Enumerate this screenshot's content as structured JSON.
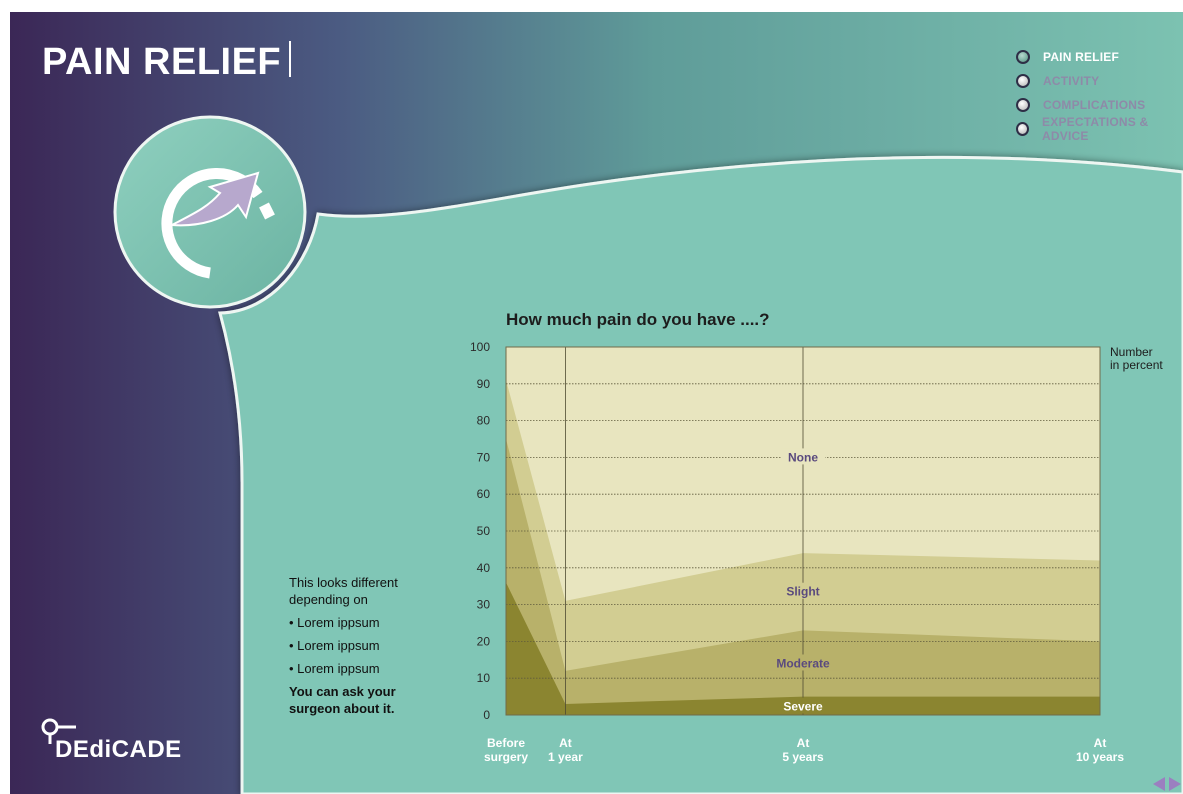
{
  "header": {
    "title": "PAIN RELIEF"
  },
  "nav": {
    "items": [
      {
        "label": "PAIN RELIEF",
        "active": true
      },
      {
        "label": "ACTIVITY",
        "active": false
      },
      {
        "label": "COMPLICATIONS",
        "active": false
      },
      {
        "label": "EXPECTATIONS & ADVICE",
        "active": false
      }
    ]
  },
  "side_text": {
    "intro_line1": "This looks different",
    "intro_line2": "depending on",
    "bullets": [
      "• Lorem ippsum",
      "• Lorem ippsum",
      "• Lorem ippsum"
    ],
    "ask_line1": "You can ask your",
    "ask_line2": "surgeon about it."
  },
  "logo": {
    "text": "DEdiCADE"
  },
  "colors": {
    "bg_dark": "#3d2a58",
    "bg_mid": "#4d5f84",
    "teal": "#80c6b6",
    "teal_light": "#a2d6ca",
    "plot_none": "#e8e5bf",
    "plot_slight": "#d2cd92",
    "plot_moderate": "#b8b16a",
    "plot_severe": "#8b8530",
    "label_purple": "#5a4a7e"
  },
  "chart_data": {
    "type": "area",
    "title": "How much pain do you have ....?",
    "ylabel_line1": "Number",
    "ylabel_line2": "in percent",
    "ylim": [
      0,
      100
    ],
    "yticks": [
      0,
      10,
      20,
      30,
      40,
      50,
      60,
      70,
      80,
      90,
      100
    ],
    "stacked": true,
    "x": [
      0,
      1,
      5,
      10
    ],
    "x_labels": [
      {
        "line1": "Before",
        "line2": "surgery"
      },
      {
        "line1": "At",
        "line2": "1 year"
      },
      {
        "line1": "At",
        "line2": "5 years"
      },
      {
        "line1": "At",
        "line2": "10 years"
      }
    ],
    "series": [
      {
        "name": "Severe",
        "values": [
          36,
          3,
          5,
          5
        ]
      },
      {
        "name": "Moderate",
        "values": [
          39,
          9,
          18,
          15
        ]
      },
      {
        "name": "Slight",
        "values": [
          16,
          19,
          21,
          22
        ]
      },
      {
        "name": "None",
        "values": [
          9,
          69,
          56,
          58
        ]
      }
    ]
  }
}
